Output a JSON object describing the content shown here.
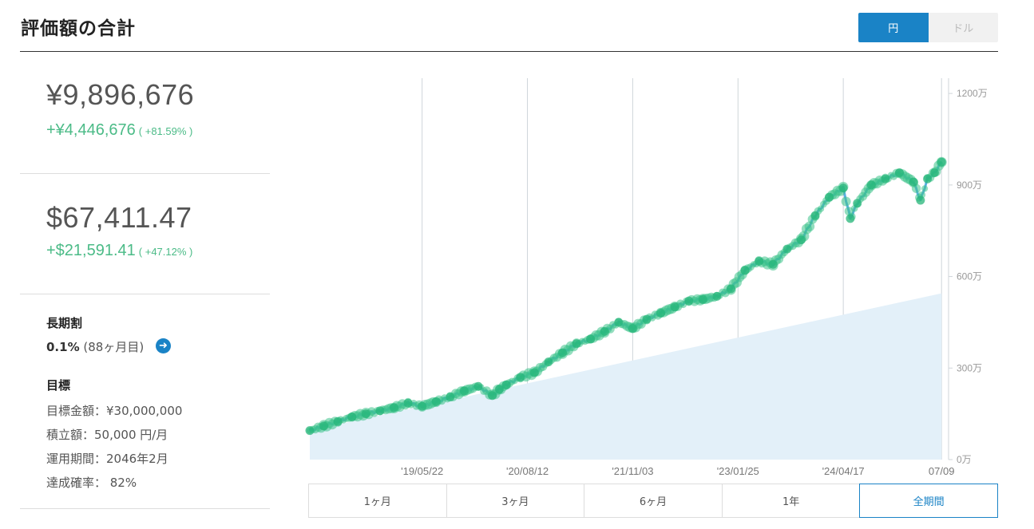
{
  "header": {
    "title": "評価額の合計"
  },
  "currency_toggle": {
    "yen": "円",
    "dollar": "ドル",
    "selected": "円"
  },
  "summary": {
    "jpy_total": "¥9,896,676",
    "jpy_gain": "+¥4,446,676",
    "jpy_gain_pct": "( +81.59% )",
    "usd_total": "$67,411.47",
    "usd_gain": "+$21,591.41",
    "usd_gain_pct": "( +47.12% )"
  },
  "long_term": {
    "heading": "長期割",
    "rate": "0.1%",
    "months": "(88ヶ月目)"
  },
  "goal": {
    "heading": "目標",
    "target_amount": "目標金額：¥30,000,000",
    "monthly": "積立額：50,000 円/月",
    "period": "運用期間：2046年2月",
    "probability": "達成確率： 82%"
  },
  "range_buttons": [
    "1ヶ月",
    "3ヶ月",
    "6ヶ月",
    "1年",
    "全期間"
  ],
  "range_selected": "全期間",
  "colors": {
    "accent": "#1a83c6",
    "gain": "#4bbb87",
    "deposit_area": "#e3f0f9",
    "line": "#5aaee3",
    "marker": "#3cc28a"
  },
  "chart_data": {
    "type": "line",
    "title": "",
    "xlabel": "",
    "ylabel": "",
    "y_unit": "万",
    "ylim": [
      0,
      1250
    ],
    "xlim": [
      0,
      91
    ],
    "x_ticks": [
      {
        "x": 16,
        "label": "'19/05/22"
      },
      {
        "x": 31,
        "label": "'20/08/12"
      },
      {
        "x": 46,
        "label": "'21/11/03"
      },
      {
        "x": 61,
        "label": "'23/01/25"
      },
      {
        "x": 76,
        "label": "'24/04/17"
      },
      {
        "x": 90,
        "label": "07/09"
      }
    ],
    "y_ticks": [
      {
        "v": 0,
        "label": "0万"
      },
      {
        "v": 300,
        "label": "300万"
      },
      {
        "v": 600,
        "label": "600万"
      },
      {
        "v": 900,
        "label": "900万"
      },
      {
        "v": 1200,
        "label": "1200万"
      }
    ],
    "grid": "vertical",
    "series": [
      {
        "role": "valuation",
        "x": [
          0,
          2,
          4,
          6,
          8,
          10,
          12,
          14,
          16,
          18,
          20,
          22,
          24,
          26,
          27,
          28,
          30,
          32,
          34,
          36,
          38,
          40,
          42,
          44,
          46,
          48,
          50,
          52,
          54,
          56,
          58,
          60,
          62,
          64,
          66,
          68,
          70,
          72,
          74,
          76,
          77,
          78,
          80,
          82,
          84,
          86,
          87,
          88,
          89,
          90
        ],
        "values": [
          95,
          110,
          125,
          140,
          150,
          160,
          170,
          185,
          175,
          190,
          205,
          225,
          240,
          210,
          230,
          245,
          270,
          285,
          320,
          350,
          380,
          395,
          420,
          450,
          430,
          460,
          480,
          500,
          520,
          525,
          535,
          560,
          620,
          650,
          640,
          690,
          720,
          800,
          860,
          890,
          790,
          840,
          900,
          920,
          940,
          910,
          850,
          920,
          940,
          975
        ]
      },
      {
        "role": "deposit",
        "x": [
          0,
          90
        ],
        "values": [
          95,
          545
        ]
      }
    ]
  }
}
